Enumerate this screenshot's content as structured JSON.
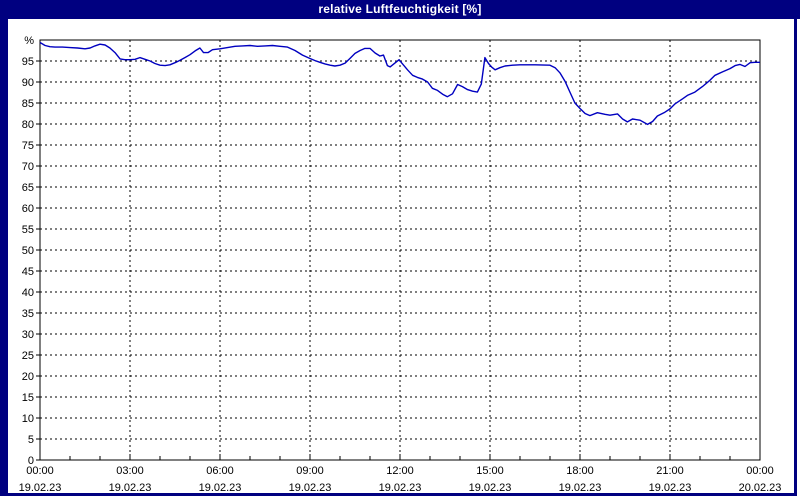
{
  "title": "relative Luftfeuchtigkeit [%]",
  "colors": {
    "titlebar_bg": "#000080",
    "title_text": "#ffffff",
    "window_border": "#000080",
    "plot_bg": "#ffffff",
    "line": "#0000c0",
    "grid": "#000000",
    "axis_text": "#000000"
  },
  "chart_data": {
    "type": "line",
    "title": "relative Luftfeuchtigkeit [%]",
    "ylabel": "%",
    "xlabel": "",
    "ylim": [
      0,
      100
    ],
    "xlim_hours": [
      0,
      24
    ],
    "grid": "dashed",
    "legend": "none",
    "y_unit_label": "%",
    "y_ticks": [
      0,
      5,
      10,
      15,
      20,
      25,
      30,
      35,
      40,
      45,
      50,
      55,
      60,
      65,
      70,
      75,
      80,
      85,
      90,
      95
    ],
    "x_ticks": [
      {
        "hour": 0,
        "time": "00:00",
        "date": "19.02.23"
      },
      {
        "hour": 3,
        "time": "03:00",
        "date": "19.02.23"
      },
      {
        "hour": 6,
        "time": "06:00",
        "date": "19.02.23"
      },
      {
        "hour": 9,
        "time": "09:00",
        "date": "19.02.23"
      },
      {
        "hour": 12,
        "time": "12:00",
        "date": "19.02.23"
      },
      {
        "hour": 15,
        "time": "15:00",
        "date": "19.02.23"
      },
      {
        "hour": 18,
        "time": "18:00",
        "date": "19.02.23"
      },
      {
        "hour": 21,
        "time": "21:00",
        "date": "19.02.23"
      },
      {
        "hour": 24,
        "time": "00:00",
        "date": "20.02.23"
      }
    ],
    "minor_x_tick_every_hours": 1,
    "points": [
      [
        0,
        99.4
      ],
      [
        0.17,
        98.7
      ],
      [
        0.33,
        98.4
      ],
      [
        0.5,
        98.3
      ],
      [
        0.75,
        98.3
      ],
      [
        1,
        98.2
      ],
      [
        1.25,
        98.1
      ],
      [
        1.5,
        97.9
      ],
      [
        1.67,
        98.1
      ],
      [
        1.83,
        98.6
      ],
      [
        2,
        99
      ],
      [
        2.17,
        98.8
      ],
      [
        2.33,
        98.1
      ],
      [
        2.5,
        97
      ],
      [
        2.67,
        95.5
      ],
      [
        2.83,
        95.3
      ],
      [
        3,
        95.3
      ],
      [
        3.17,
        95.4
      ],
      [
        3.33,
        95.8
      ],
      [
        3.5,
        95.4
      ],
      [
        3.67,
        95
      ],
      [
        3.83,
        94.4
      ],
      [
        4,
        94
      ],
      [
        4.17,
        93.9
      ],
      [
        4.33,
        94.1
      ],
      [
        4.5,
        94.6
      ],
      [
        4.67,
        95.2
      ],
      [
        4.83,
        95.8
      ],
      [
        5,
        96.5
      ],
      [
        5.17,
        97.4
      ],
      [
        5.33,
        98.1
      ],
      [
        5.45,
        97
      ],
      [
        5.6,
        97
      ],
      [
        5.75,
        97.7
      ],
      [
        6,
        97.9
      ],
      [
        6.25,
        98.2
      ],
      [
        6.5,
        98.5
      ],
      [
        6.75,
        98.6
      ],
      [
        7,
        98.7
      ],
      [
        7.25,
        98.5
      ],
      [
        7.5,
        98.6
      ],
      [
        7.75,
        98.7
      ],
      [
        8,
        98.5
      ],
      [
        8.25,
        98.3
      ],
      [
        8.5,
        97.5
      ],
      [
        8.75,
        96.4
      ],
      [
        9,
        95.6
      ],
      [
        9.17,
        95.1
      ],
      [
        9.33,
        94.7
      ],
      [
        9.5,
        94.3
      ],
      [
        9.67,
        94
      ],
      [
        9.83,
        93.8
      ],
      [
        10,
        94
      ],
      [
        10.17,
        94.5
      ],
      [
        10.33,
        95.6
      ],
      [
        10.5,
        96.8
      ],
      [
        10.67,
        97.5
      ],
      [
        10.83,
        98
      ],
      [
        11,
        98
      ],
      [
        11.17,
        96.9
      ],
      [
        11.33,
        96.2
      ],
      [
        11.45,
        96.4
      ],
      [
        11.58,
        93.9
      ],
      [
        11.67,
        93.6
      ],
      [
        11.83,
        94.5
      ],
      [
        11.97,
        95.3
      ],
      [
        12.05,
        94.6
      ],
      [
        12.25,
        92.9
      ],
      [
        12.42,
        91.6
      ],
      [
        12.58,
        91.1
      ],
      [
        12.75,
        90.7
      ],
      [
        12.92,
        90
      ],
      [
        13.08,
        88.5
      ],
      [
        13.25,
        88
      ],
      [
        13.42,
        87.1
      ],
      [
        13.58,
        86.5
      ],
      [
        13.75,
        87.2
      ],
      [
        13.92,
        89.4
      ],
      [
        14.08,
        88.9
      ],
      [
        14.25,
        88.2
      ],
      [
        14.42,
        87.8
      ],
      [
        14.58,
        87.6
      ],
      [
        14.71,
        89.5
      ],
      [
        14.83,
        95.8
      ],
      [
        14.95,
        94.4
      ],
      [
        15.05,
        93.6
      ],
      [
        15.17,
        92.9
      ],
      [
        15.33,
        93.4
      ],
      [
        15.5,
        93.8
      ],
      [
        15.75,
        94
      ],
      [
        16,
        94.1
      ],
      [
        16.5,
        94.1
      ],
      [
        17,
        94
      ],
      [
        17.17,
        93.4
      ],
      [
        17.33,
        92.2
      ],
      [
        17.5,
        90.2
      ],
      [
        17.67,
        87.5
      ],
      [
        17.83,
        85
      ],
      [
        18,
        83.7
      ],
      [
        18.17,
        82.5
      ],
      [
        18.33,
        82
      ],
      [
        18.58,
        82.7
      ],
      [
        18.83,
        82.3
      ],
      [
        19,
        82.1
      ],
      [
        19.25,
        82.4
      ],
      [
        19.42,
        81.2
      ],
      [
        19.58,
        80.5
      ],
      [
        19.75,
        81.2
      ],
      [
        20,
        80.9
      ],
      [
        20.25,
        79.9
      ],
      [
        20.42,
        80.6
      ],
      [
        20.58,
        81.9
      ],
      [
        20.83,
        82.8
      ],
      [
        21,
        83.6
      ],
      [
        21.17,
        84.8
      ],
      [
        21.42,
        86
      ],
      [
        21.58,
        86.8
      ],
      [
        21.83,
        87.6
      ],
      [
        22.08,
        88.9
      ],
      [
        22.33,
        90.4
      ],
      [
        22.5,
        91.6
      ],
      [
        22.75,
        92.4
      ],
      [
        23,
        93.2
      ],
      [
        23.17,
        93.9
      ],
      [
        23.33,
        94.2
      ],
      [
        23.5,
        93.7
      ],
      [
        23.67,
        94.6
      ],
      [
        23.83,
        94.7
      ],
      [
        24,
        94.7
      ]
    ]
  }
}
